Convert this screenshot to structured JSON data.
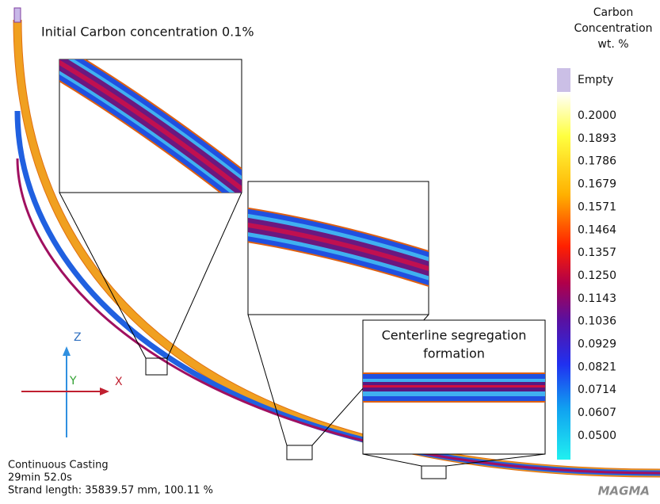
{
  "title": "Initial Carbon concentration 0.1%",
  "legend": {
    "title": [
      "Carbon",
      "Concentration",
      "wt. %"
    ],
    "labels": [
      "Empty",
      "0.2000",
      "0.1893",
      "0.1786",
      "0.1679",
      "0.1571",
      "0.1464",
      "0.1357",
      "0.1250",
      "0.1143",
      "0.1036",
      "0.0929",
      "0.0821",
      "0.0714",
      "0.0607",
      "0.0500"
    ]
  },
  "callout": [
    "Centerline segregation",
    "formation"
  ],
  "axes": {
    "z": "Z",
    "y": "Y",
    "x": "X"
  },
  "footer": [
    "Continuous Casting",
    "29min 52.0s",
    "Strand length: 35839.57 mm, 100.11 %"
  ],
  "logo": "MAGMA"
}
